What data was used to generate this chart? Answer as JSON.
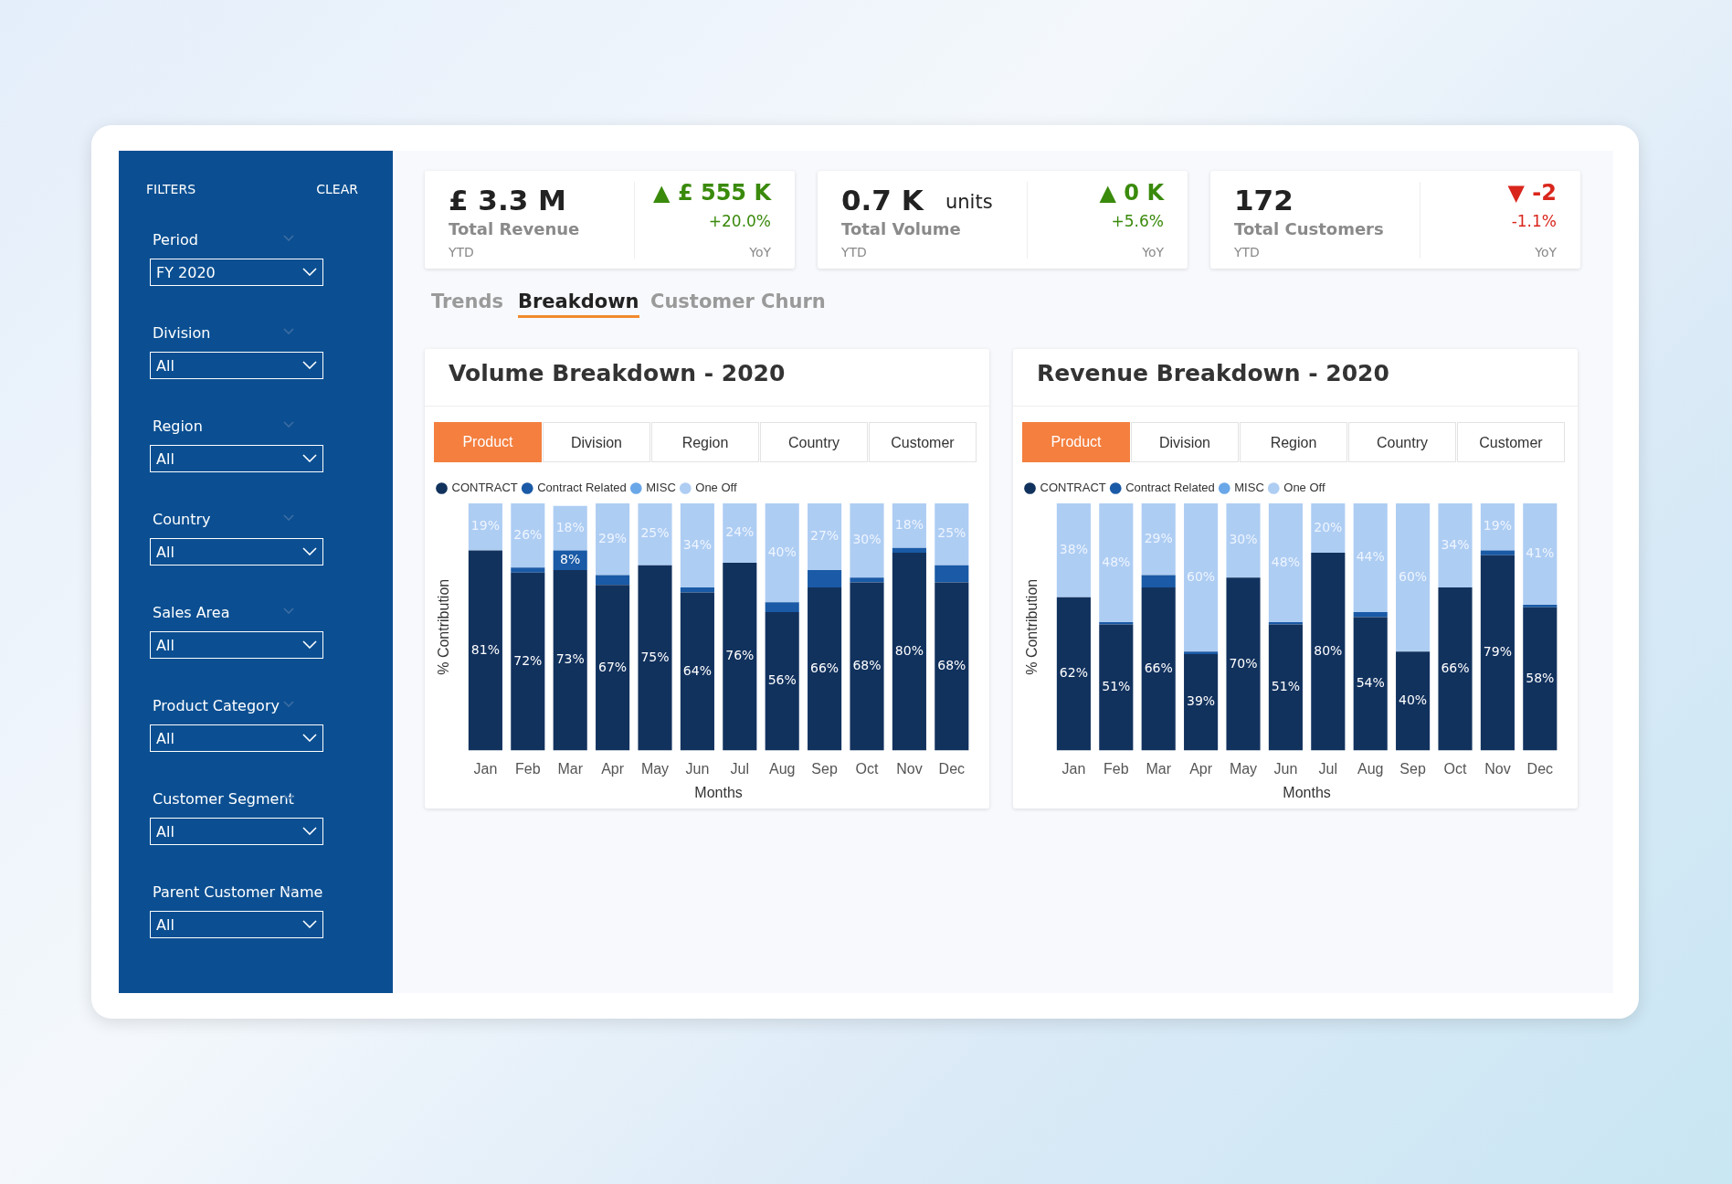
{
  "chart_data": [
    {
      "type": "other",
      "title": "FILTERS",
      "annotations": [
        "CLEAR",
        "Period",
        "FY 2020",
        "Division",
        "All",
        "Region",
        "All",
        "Country",
        "All",
        "Sales Area",
        "All",
        "Product Category",
        "All",
        "Customer Segment",
        "All",
        "Parent Customer Name",
        "All"
      ]
    },
    {
      "type": "other",
      "title": "£ 3.3 M",
      "subtitle": "Total Revenue",
      "color": "#3a8a0c",
      "annotations": [
        "YTD",
        "▲ £ 555 K",
        "+20.0%",
        "YoY"
      ]
    },
    {
      "type": "other",
      "title": "0.7 K",
      "subtitle": "Total Volume",
      "color": "#3a8a0c",
      "annotations": [
        "YTD",
        "▲ 0 K",
        "+5.6%",
        "YoY",
        "units"
      ]
    },
    {
      "type": "other",
      "title": "172",
      "subtitle": "Total Customers",
      "color": "#d9261c",
      "annotations": [
        "YTD",
        "▼ -2",
        "-1.1%",
        "YoY"
      ]
    },
    {
      "type": "other",
      "annotations": [
        "Trends",
        "Breakdown",
        "Customer Churn"
      ]
    },
    {
      "type": "bar",
      "title": "Volume Breakdown - 2020",
      "stacked": true,
      "legend": "top left",
      "tick_labels": "x",
      "grid": false,
      "ylim": [
        0,
        100
      ],
      "xlabel": "Months",
      "ylabel": "% Contribution",
      "annotations": [
        "Product",
        "Division",
        "Region",
        "Country",
        "Customer"
      ],
      "categories": [
        "Jan",
        "Feb",
        "Mar",
        "Apr",
        "May",
        "Jun",
        "Jul",
        "Aug",
        "Sep",
        "Oct",
        "Nov",
        "Dec"
      ],
      "series": [
        {
          "name": "CONTRACT",
          "color": "#12325e",
          "values": [
            81,
            72,
            73,
            67,
            75,
            64,
            76,
            56,
            66,
            68,
            80,
            68
          ],
          "value_labels": [
            "81%",
            "72%",
            "73%",
            "67%",
            "75%",
            "64%",
            "76%",
            "56%",
            "66%",
            "68%",
            "80%",
            "68%"
          ]
        },
        {
          "name": "Contract Related",
          "color": "#1a5aa6",
          "values": [
            0,
            2,
            8,
            4,
            0,
            2,
            0,
            4,
            7,
            2,
            2,
            7
          ],
          "value_labels": [
            null,
            null,
            "8%",
            null,
            null,
            null,
            null,
            null,
            null,
            null,
            null,
            null
          ]
        },
        {
          "name": "MISC",
          "color": "#6aa7e8",
          "values": [
            0,
            0,
            0,
            0,
            0,
            0,
            0,
            0,
            0,
            0,
            0,
            0
          ]
        },
        {
          "name": "One Off",
          "color": "#aecdf3",
          "values": [
            19,
            26,
            18,
            29,
            25,
            34,
            24,
            40,
            27,
            30,
            18,
            25
          ],
          "value_labels": [
            "19%",
            "26%",
            "18%",
            "29%",
            "25%",
            "34%",
            "24%",
            "40%",
            "27%",
            "30%",
            "18%",
            "25%"
          ]
        }
      ]
    },
    {
      "type": "bar",
      "title": "Revenue Breakdown - 2020",
      "stacked": true,
      "legend": "top left",
      "tick_labels": "x",
      "grid": false,
      "ylim": [
        0,
        100
      ],
      "xlabel": "Months",
      "ylabel": "% Contribution",
      "annotations": [
        "Product",
        "Division",
        "Region",
        "Country",
        "Customer"
      ],
      "categories": [
        "Jan",
        "Feb",
        "Mar",
        "Apr",
        "May",
        "Jun",
        "Jul",
        "Aug",
        "Sep",
        "Oct",
        "Nov",
        "Dec"
      ],
      "series": [
        {
          "name": "CONTRACT",
          "color": "#12325e",
          "values": [
            62,
            51,
            66,
            39,
            70,
            51,
            80,
            54,
            40,
            66,
            79,
            58
          ],
          "value_labels": [
            "62%",
            "51%",
            "66%",
            "39%",
            "70%",
            "51%",
            "80%",
            "54%",
            "40%",
            "66%",
            "79%",
            "58%"
          ]
        },
        {
          "name": "Contract Related",
          "color": "#1a5aa6",
          "values": [
            0,
            1,
            5,
            1,
            0,
            1,
            0,
            2,
            0,
            0,
            2,
            1
          ]
        },
        {
          "name": "MISC",
          "color": "#6aa7e8",
          "values": [
            0,
            0,
            0,
            0,
            0,
            0,
            0,
            0,
            0,
            0,
            0,
            0
          ]
        },
        {
          "name": "One Off",
          "color": "#aecdf3",
          "values": [
            38,
            48,
            29,
            60,
            30,
            48,
            20,
            44,
            60,
            34,
            19,
            41
          ],
          "value_labels": [
            "38%",
            "48%",
            "29%",
            "60%",
            "30%",
            "48%",
            "20%",
            "44%",
            "60%",
            "34%",
            "19%",
            "41%"
          ]
        }
      ]
    }
  ]
}
